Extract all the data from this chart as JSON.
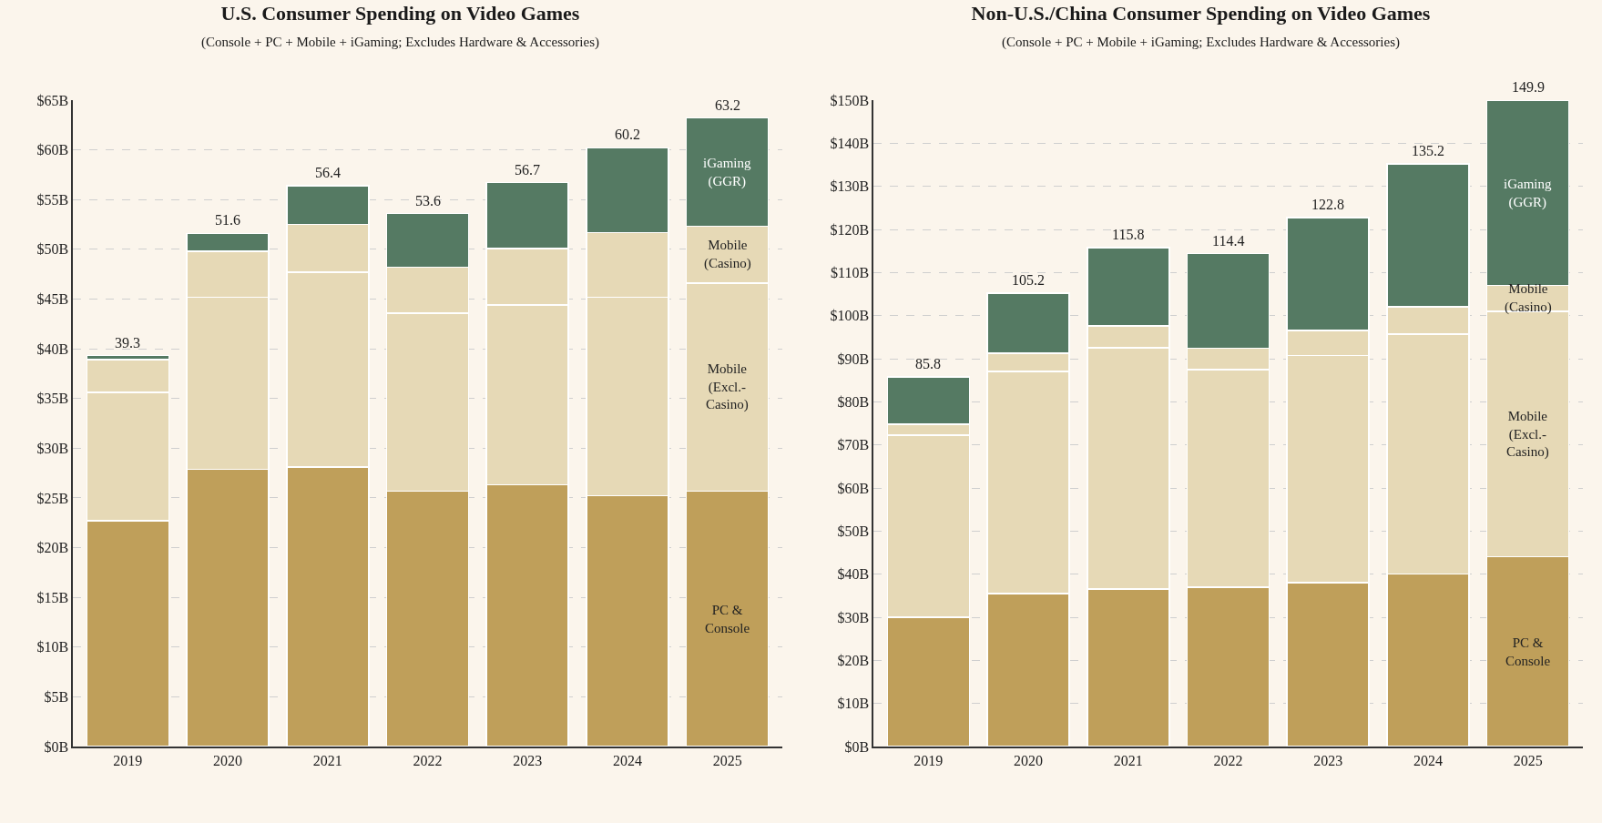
{
  "chart_data": [
    {
      "type": "bar",
      "title": "U.S. Consumer Spending on Video Games",
      "subtitle": "(Console + PC + Mobile + iGaming; Excludes Hardware & Accessories)",
      "categories": [
        "2019",
        "2020",
        "2021",
        "2022",
        "2023",
        "2024",
        "2025"
      ],
      "stacked": true,
      "series": [
        {
          "name": "PC & Console",
          "color": "#bf9f5a",
          "values": [
            22.7,
            27.9,
            28.1,
            25.7,
            26.3,
            25.2,
            25.7
          ]
        },
        {
          "name": "Mobile (Excl.-Casino)",
          "color": "#e6d9b6",
          "values": [
            12.9,
            17.3,
            19.6,
            17.9,
            18.1,
            20.0,
            20.9
          ]
        },
        {
          "name": "Mobile (Casino)",
          "color": "#e6d9b6",
          "values": [
            3.3,
            4.6,
            4.8,
            4.6,
            5.7,
            6.5,
            5.7
          ]
        },
        {
          "name": "iGaming (GGR)",
          "color": "#557a63",
          "values": [
            0.4,
            1.8,
            3.9,
            5.4,
            6.6,
            8.5,
            10.9
          ]
        }
      ],
      "totals": [
        "39.3",
        "51.6",
        "56.4",
        "53.6",
        "56.7",
        "60.2",
        "63.2"
      ],
      "ylim": [
        0,
        65
      ],
      "yticks": [
        {
          "value": 0,
          "label": "$0B"
        },
        {
          "value": 5,
          "label": "$5B"
        },
        {
          "value": 10,
          "label": "$10B"
        },
        {
          "value": 15,
          "label": "$15B"
        },
        {
          "value": 20,
          "label": "$20B"
        },
        {
          "value": 25,
          "label": "$25B"
        },
        {
          "value": 30,
          "label": "$30B"
        },
        {
          "value": 35,
          "label": "$35B"
        },
        {
          "value": 40,
          "label": "$40B"
        },
        {
          "value": 45,
          "label": "$45B"
        },
        {
          "value": 50,
          "label": "$50B"
        },
        {
          "value": 55,
          "label": "$55B"
        },
        {
          "value": 60,
          "label": "$60B"
        },
        {
          "value": 65,
          "label": "$65B"
        }
      ],
      "grid": "y",
      "legend": false
    },
    {
      "type": "bar",
      "title": "Non-U.S./China Consumer Spending on Video Games",
      "subtitle": "(Console + PC + Mobile + iGaming; Excludes Hardware & Accessories)",
      "categories": [
        "2019",
        "2020",
        "2021",
        "2022",
        "2023",
        "2024",
        "2025"
      ],
      "stacked": true,
      "series": [
        {
          "name": "PC & Console",
          "color": "#bf9f5a",
          "values": [
            30,
            35.5,
            36.5,
            37,
            38,
            40,
            44
          ]
        },
        {
          "name": "Mobile (Excl.-Casino)",
          "color": "#e6d9b6",
          "values": [
            42.3,
            51.5,
            56,
            50.5,
            52.7,
            55.7,
            57
          ]
        },
        {
          "name": "Mobile (Casino)",
          "color": "#e6d9b6",
          "values": [
            2.5,
            4.3,
            5.1,
            4.9,
            5.8,
            6.3,
            6
          ]
        },
        {
          "name": "iGaming (GGR)",
          "color": "#557a63",
          "values": [
            11,
            13.9,
            18.2,
            22,
            26.3,
            33.2,
            42.9
          ]
        }
      ],
      "totals": [
        "85.8",
        "105.2",
        "115.8",
        "114.4",
        "122.8",
        "135.2",
        "149.9"
      ],
      "ylim": [
        0,
        150
      ],
      "yticks": [
        {
          "value": 0,
          "label": "$0B"
        },
        {
          "value": 10,
          "label": "$10B"
        },
        {
          "value": 20,
          "label": "$20B"
        },
        {
          "value": 30,
          "label": "$30B"
        },
        {
          "value": 40,
          "label": "$40B"
        },
        {
          "value": 50,
          "label": "$50B"
        },
        {
          "value": 60,
          "label": "$60B"
        },
        {
          "value": 70,
          "label": "$70B"
        },
        {
          "value": 80,
          "label": "$80B"
        },
        {
          "value": 90,
          "label": "$90B"
        },
        {
          "value": 100,
          "label": "$100B"
        },
        {
          "value": 110,
          "label": "$110B"
        },
        {
          "value": 120,
          "label": "$120B"
        },
        {
          "value": 130,
          "label": "$130B"
        },
        {
          "value": 140,
          "label": "$140B"
        },
        {
          "value": 150,
          "label": "$150B"
        }
      ],
      "grid": "y",
      "legend": false
    }
  ]
}
